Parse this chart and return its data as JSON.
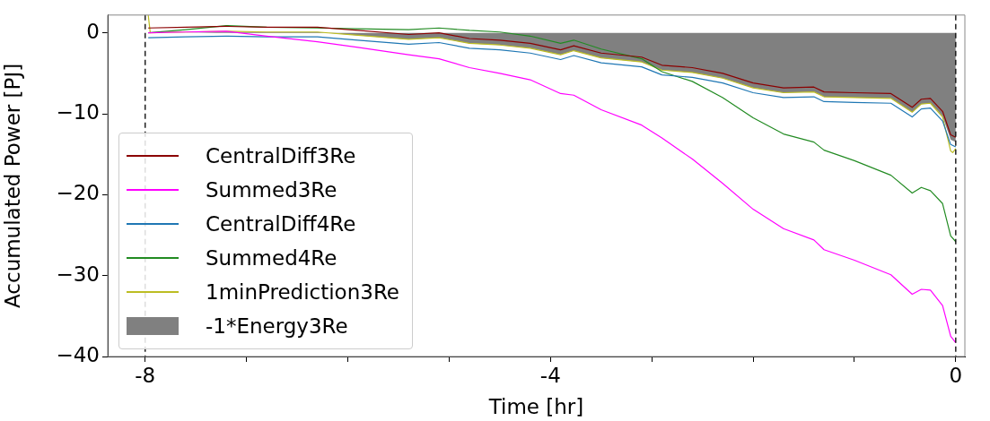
{
  "chart_data": {
    "type": "line",
    "xlabel": "Time [hr]",
    "ylabel": "Accumulated Power [PJ]",
    "x": [
      -7.97,
      -7.6,
      -7.2,
      -6.8,
      -6.3,
      -5.9,
      -5.4,
      -5.1,
      -4.8,
      -4.5,
      -4.2,
      -3.9,
      -3.77,
      -3.5,
      -3.1,
      -2.9,
      -2.6,
      -2.3,
      -2,
      -1.7,
      -1.4,
      -1.3,
      -1,
      -0.64,
      -0.43,
      -0.34,
      -0.25,
      -0.13,
      -0.05,
      0
    ],
    "series": [
      {
        "name": "CentralDiff3Re",
        "color": "#8b0000",
        "values": [
          0.6,
          0.7,
          0.8,
          0.7,
          0.7,
          0.3,
          -0.2,
          0,
          -0.7,
          -0.9,
          -1.3,
          -2.1,
          -1.6,
          -2.5,
          -3,
          -4,
          -4.3,
          -5,
          -6.2,
          -6.8,
          -6.7,
          -7.3,
          -7.4,
          -7.5,
          -9.2,
          -8.2,
          -8.1,
          -9.7,
          -12.6,
          -12.9
        ]
      },
      {
        "name": "Summed3Re",
        "color": "#ff00ff",
        "values": [
          0,
          0.1,
          0.2,
          -0.4,
          -1.1,
          -1.8,
          -2.7,
          -3.2,
          -4.3,
          -5.0,
          -5.8,
          -7.5,
          -7.7,
          -9.5,
          -11.4,
          -13.0,
          -15.6,
          -18.6,
          -21.8,
          -24.2,
          -25.6,
          -26.8,
          -28.1,
          -29.9,
          -32.3,
          -31.7,
          -31.8,
          -33.7,
          -37.5,
          -38.3
        ]
      },
      {
        "name": "CentralDiff4Re",
        "color": "#1f77b4",
        "values": [
          -0.6,
          -0.5,
          -0.4,
          -0.5,
          -0.5,
          -0.9,
          -1.4,
          -1.2,
          -1.9,
          -2.1,
          -2.5,
          -3.3,
          -2.8,
          -3.7,
          -4.2,
          -5.2,
          -5.5,
          -6.2,
          -7.4,
          -8,
          -7.9,
          -8.5,
          -8.6,
          -8.7,
          -10.4,
          -9.4,
          -9.3,
          -10.9,
          -13.8,
          -14.1
        ]
      },
      {
        "name": "Summed4Re",
        "color": "#228b22",
        "values": [
          0,
          0.4,
          0.9,
          0.7,
          0.6,
          0.5,
          0.4,
          0.6,
          0.3,
          0.1,
          -0.4,
          -1.3,
          -0.9,
          -2.0,
          -3.2,
          -4.8,
          -6.0,
          -8.0,
          -10.5,
          -12.5,
          -13.5,
          -14.5,
          -15.8,
          -17.6,
          -19.8,
          -19.1,
          -19.5,
          -21.1,
          -25.1,
          -25.8
        ]
      },
      {
        "name": "1minPrediction3Re",
        "color": "#bcbd22",
        "x": [
          -7.97,
          -7.95,
          -7.6,
          -7.2,
          -6.8,
          -6.3,
          -5.9,
          -5.4,
          -5.1,
          -4.8,
          -4.5,
          -4.2,
          -3.9,
          -3.77,
          -3.5,
          -3.1,
          -2.9,
          -2.6,
          -2.3,
          -2,
          -1.7,
          -1.4,
          -1.3,
          -1,
          -0.64,
          -0.43,
          -0.34,
          -0.25,
          -0.13,
          -0.05,
          -0.03,
          0
        ],
        "values": [
          2.2,
          0,
          0.1,
          0.2,
          0.1,
          0.1,
          -0.3,
          -0.8,
          -0.6,
          -1.3,
          -1.5,
          -1.9,
          -2.7,
          -2.2,
          -3.1,
          -3.6,
          -4.6,
          -4.9,
          -5.6,
          -6.8,
          -7.4,
          -7.3,
          -7.9,
          -8.0,
          -8.1,
          -9.8,
          -8.8,
          -8.7,
          -10.4,
          -14.6,
          -14.8,
          -14.3
        ]
      },
      {
        "name": "-1*Energy3Re",
        "type": "area",
        "color": "#808080",
        "values": [
          0,
          0,
          0.1,
          0.1,
          0.1,
          -0.3,
          -0.8,
          -0.6,
          -1.3,
          -1.5,
          -1.9,
          -2.7,
          -2.2,
          -3.1,
          -3.6,
          -4.6,
          -4.9,
          -5.6,
          -6.8,
          -7.4,
          -7.3,
          -7.9,
          -8.0,
          -8.1,
          -9.8,
          -8.8,
          -8.7,
          -10.3,
          -13.2,
          -13.5
        ]
      }
    ],
    "xlim": [
      -8.37,
      0.09
    ],
    "xticks": [
      -8,
      {
        "value": -7,
        "label": null
      },
      {
        "value": -6,
        "label": null
      },
      {
        "value": -5,
        "label": null
      },
      -4,
      {
        "value": -3,
        "label": null
      },
      {
        "value": -2,
        "label": null
      },
      {
        "value": -1,
        "label": null
      },
      0
    ],
    "ylim": [
      -40,
      2.2
    ],
    "yticks": [
      {
        "value": -40,
        "label": "−40"
      },
      {
        "value": -30,
        "label": "−30"
      },
      {
        "value": -20,
        "label": "−20"
      },
      {
        "value": -10,
        "label": "−10"
      },
      0
    ],
    "ref_lines": [
      {
        "axis": "x",
        "value": -8,
        "color": "#000000",
        "line_style": "dashed"
      },
      {
        "axis": "x",
        "value": 0,
        "color": "#000000",
        "line_style": "dashed"
      }
    ],
    "legend": "bottom left",
    "grid": false,
    "marker": "none",
    "line_style": "solid"
  }
}
